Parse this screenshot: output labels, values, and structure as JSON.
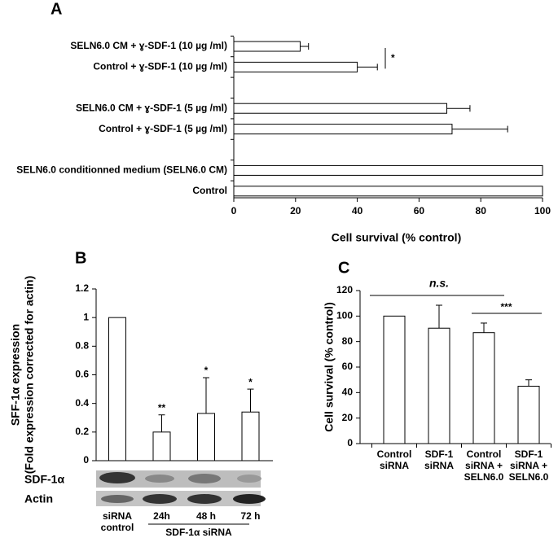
{
  "chart_data": [
    {
      "type": "bar",
      "orientation": "horizontal",
      "label": "A",
      "xlabel": "Cell survival (% control)",
      "categories": [
        "SELN6.0 CM + ɣ-SDF-1 (10 µg /ml)",
        "Control + ɣ-SDF-1 (10 µg /ml)",
        null,
        "SELN6.0 CM + ɣ-SDF-1 (5 µg /ml)",
        "Control + ɣ-SDF-1 (5 µg /ml)",
        null,
        "SELN6.0 conditionned medium (SELN6.0 CM)",
        "Control"
      ],
      "values": [
        21.5,
        40,
        null,
        69,
        70.7,
        null,
        100,
        100
      ],
      "errors": [
        2.7,
        6.5,
        null,
        7.5,
        18,
        null,
        0,
        0
      ],
      "color": "#ffffff",
      "xlim": [
        0,
        100
      ],
      "xticks": [
        0,
        20,
        40,
        60,
        80,
        100
      ],
      "annotations": [
        "*"
      ]
    },
    {
      "type": "bar",
      "label": "B",
      "ylabel": [
        "SFF-1α expression",
        "(Fold expression corrected for actin)"
      ],
      "categories": [
        "siRNA control",
        "24h",
        "48 h",
        "72 h"
      ],
      "group_label": "SDF-1α siRNA",
      "blot_labels": [
        "SDF-1α",
        "Actin"
      ],
      "values": [
        1,
        0.2,
        0.33,
        0.34
      ],
      "errors": [
        0,
        0.12,
        0.25,
        0.16
      ],
      "significance": [
        null,
        "**",
        "*",
        "*"
      ],
      "color": "#ffffff",
      "ylim": [
        0,
        1.2
      ],
      "yticks": [
        0,
        0.2,
        0.4,
        0.6,
        0.8,
        1,
        1.2
      ]
    },
    {
      "type": "bar",
      "label": "C",
      "ylabel": [
        "Cell survival (% control)"
      ],
      "categories": [
        "Control siRNA",
        "SDF-1 siRNA",
        "Control siRNA + SELN6.0",
        "SDF-1 siRNA + SELN6.0"
      ],
      "values": [
        100,
        90.5,
        87,
        45
      ],
      "errors": [
        0,
        18,
        7.5,
        5
      ],
      "annotations": [
        "n.s.",
        "***"
      ],
      "color": "#ffffff",
      "ylim": [
        0,
        120
      ],
      "yticks": [
        0,
        20,
        40,
        60,
        80,
        100,
        120
      ]
    }
  ]
}
